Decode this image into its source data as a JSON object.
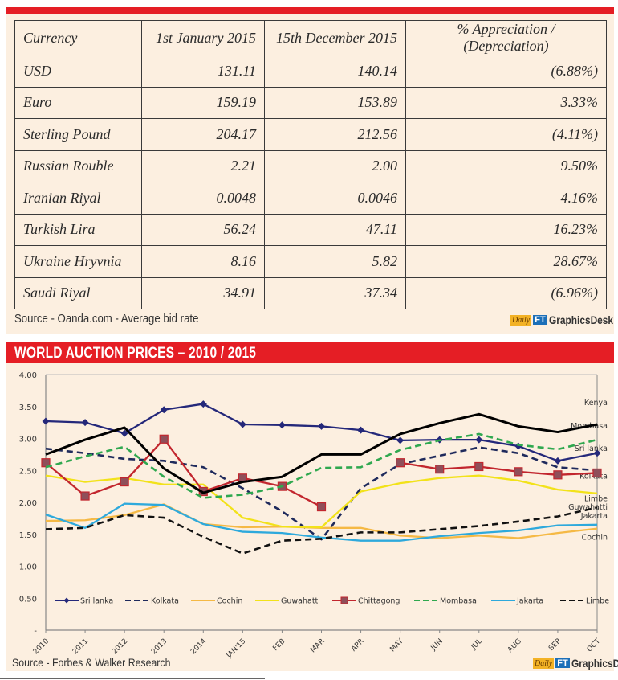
{
  "currency_table": {
    "headers": [
      "Currency",
      "1st January 2015",
      "15th December 2015",
      "% Appreciation / (Depreciation)"
    ],
    "rows": [
      {
        "currency": "USD",
        "jan": "131.11",
        "dec": "140.14",
        "change": "(6.88%)"
      },
      {
        "currency": "Euro",
        "jan": "159.19",
        "dec": "153.89",
        "change": "3.33%"
      },
      {
        "currency": "Sterling Pound",
        "jan": "204.17",
        "dec": "212.56",
        "change": "(4.11%)"
      },
      {
        "currency": "Russian Rouble",
        "jan": "2.21",
        "dec": "2.00",
        "change": "9.50%"
      },
      {
        "currency": "Iranian Riyal",
        "jan": "0.0048",
        "dec": "0.0046",
        "change": "4.16%"
      },
      {
        "currency": "Turkish Lira",
        "jan": "56.24",
        "dec": "47.11",
        "change": "16.23%"
      },
      {
        "currency": "Ukraine Hryvnia",
        "jan": "8.16",
        "dec": "5.82",
        "change": "28.67%"
      },
      {
        "currency": "Saudi Riyal",
        "jan": "34.91",
        "dec": "37.34",
        "change": "(6.96%)"
      }
    ],
    "source": "Source - Oanda.com - Average bid rate"
  },
  "logo": {
    "daily": "Daily",
    "ft": "FT",
    "desk": "GraphicsDesk"
  },
  "colors": {
    "accent_red": "#e51e25",
    "panel_bg": "#fcefe0"
  },
  "chart_section": {
    "title": "WORLD AUCTION PRICES – 2010 / 2015",
    "source": "Source - Forbes & Walker Research"
  },
  "chart_data": {
    "type": "line",
    "title": "WORLD AUCTION PRICES – 2010 / 2015",
    "xlabel": "",
    "ylabel": "",
    "ylim": [
      0,
      4
    ],
    "yticks": [
      "-",
      "0.50",
      "1.00",
      "1.50",
      "2.00",
      "2.50",
      "3.00",
      "3.50",
      "4.00"
    ],
    "ytick_values": [
      0,
      0.5,
      1,
      1.5,
      2,
      2.5,
      3,
      3.5,
      4
    ],
    "grid": false,
    "legend_position": "bottom-inside",
    "categories": [
      "2010",
      "2011",
      "2012",
      "2013",
      "2014",
      "JAN'15",
      "FEB",
      "MAR",
      "APR",
      "MAY",
      "JUN",
      "JUL",
      "AUG",
      "SEP",
      "OCT"
    ],
    "series": [
      {
        "name": "Sri lanka",
        "color": "#24287a",
        "style": "solid",
        "marker": "diamond",
        "end_label": "Sri lanka",
        "values": [
          3.27,
          3.25,
          3.08,
          3.45,
          3.54,
          3.22,
          3.21,
          3.19,
          3.13,
          2.97,
          2.98,
          2.98,
          2.88,
          2.65,
          2.77
        ]
      },
      {
        "name": "Kolkata",
        "color": "#1f2a5c",
        "style": "dashed",
        "marker": "none",
        "end_label": "Kolkata",
        "values": [
          2.84,
          2.77,
          2.68,
          2.65,
          2.55,
          2.22,
          1.86,
          1.42,
          2.22,
          2.6,
          2.73,
          2.86,
          2.77,
          2.55,
          2.5
        ]
      },
      {
        "name": "Cochin",
        "color": "#f5b945",
        "style": "solid",
        "marker": "none",
        "end_label": "Cochin",
        "values": [
          1.71,
          1.72,
          1.8,
          1.97,
          1.66,
          1.61,
          1.62,
          1.6,
          1.6,
          1.48,
          1.44,
          1.48,
          1.44,
          1.52,
          1.59
        ]
      },
      {
        "name": "Guwahatti",
        "color": "#f2e21a",
        "style": "solid",
        "marker": "none",
        "end_label": "Guwahatti",
        "values": [
          2.42,
          2.32,
          2.38,
          2.28,
          2.28,
          1.76,
          1.62,
          1.61,
          2.17,
          2.3,
          2.38,
          2.42,
          2.34,
          2.2,
          2.14
        ]
      },
      {
        "name": "Chittagong",
        "color": "#c2262e",
        "style": "solid",
        "marker": "square",
        "end_label": "",
        "values": [
          2.62,
          2.1,
          2.32,
          2.99,
          2.17,
          2.38,
          2.25,
          1.93,
          null,
          2.62,
          2.52,
          2.56,
          2.48,
          2.43,
          2.46
        ]
      },
      {
        "name": "Mombasa",
        "color": "#2fa84f",
        "style": "dashed",
        "marker": "none",
        "end_label": "Mombasa",
        "values": [
          2.55,
          2.72,
          2.87,
          2.4,
          2.07,
          2.12,
          2.25,
          2.54,
          2.55,
          2.82,
          2.97,
          3.07,
          2.9,
          2.83,
          2.98
        ]
      },
      {
        "name": "Jakarta",
        "color": "#2ea9dc",
        "style": "solid",
        "marker": "none",
        "end_label": "Jakarta",
        "values": [
          1.81,
          1.6,
          1.98,
          1.96,
          1.66,
          1.54,
          1.52,
          1.45,
          1.4,
          1.4,
          1.47,
          1.52,
          1.56,
          1.64,
          1.65
        ]
      },
      {
        "name": "Limbe",
        "color": "#111111",
        "style": "dashed",
        "marker": "none",
        "end_label": "Limbe",
        "values": [
          1.58,
          1.6,
          1.8,
          1.76,
          1.46,
          1.2,
          1.4,
          1.43,
          1.53,
          1.53,
          1.58,
          1.63,
          1.7,
          1.78,
          1.92
        ]
      },
      {
        "name": "Kenya",
        "color": "#000000",
        "style": "solid",
        "marker": "none",
        "end_label": "Kenya",
        "values": [
          2.75,
          2.98,
          3.17,
          2.53,
          2.15,
          2.32,
          2.4,
          2.75,
          2.75,
          3.07,
          3.24,
          3.38,
          3.19,
          3.1,
          3.22
        ]
      }
    ]
  }
}
